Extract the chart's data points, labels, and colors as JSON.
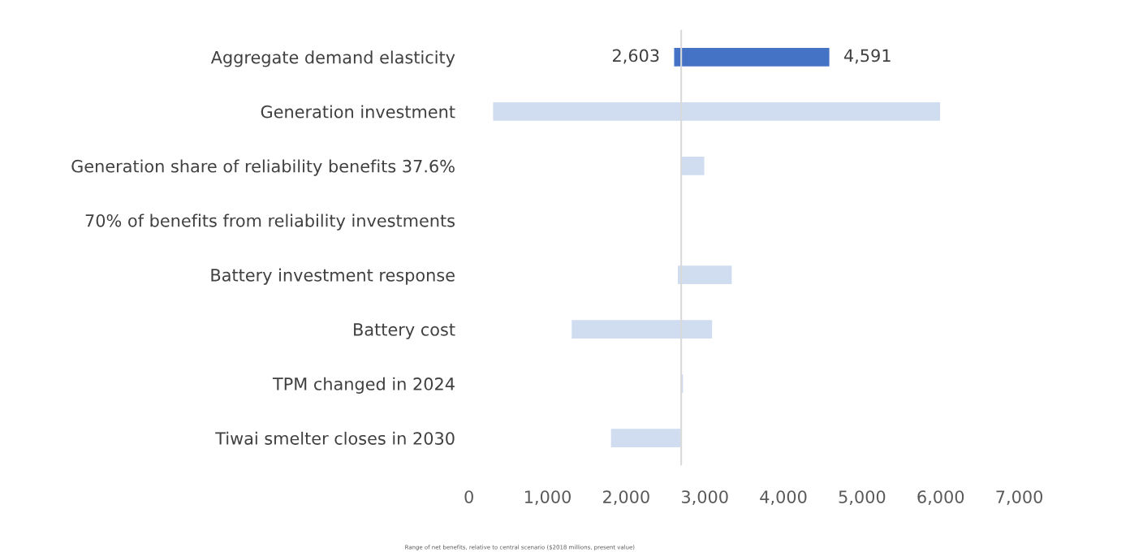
{
  "chart_data": {
    "type": "bar",
    "orientation": "horizontal",
    "categories": [
      "Aggregate demand elasticity",
      "Generation investment",
      "Generation share of reliability benefits 37.6%",
      "70% of benefits from reliability investments",
      "Battery investment response",
      "Battery cost",
      "TPM changed in 2024",
      "Tiwai smelter closes in 2030"
    ],
    "base": [
      2603,
      300,
      2700,
      null,
      2650,
      1300,
      2700,
      1800
    ],
    "values": [
      1988,
      5700,
      300,
      null,
      700,
      1800,
      30,
      900
    ],
    "colors": [
      "#4472c4",
      "#d0ddf0",
      "#d0ddf0",
      "#d0ddf0",
      "#d0ddf0",
      "#d0ddf0",
      "#d0ddf0",
      "#d0ddf0"
    ],
    "xlim": [
      0,
      7000
    ],
    "xticks": [
      {
        "value": 0,
        "label": "0"
      },
      {
        "value": 1000,
        "label": "1,000"
      },
      {
        "value": 2000,
        "label": "2,000"
      },
      {
        "value": 3000,
        "label": "3,000"
      },
      {
        "value": 4000,
        "label": "4,000"
      },
      {
        "value": 5000,
        "label": "5,000"
      },
      {
        "value": 6000,
        "label": "6,000"
      },
      {
        "value": 7000,
        "label": "7,000"
      }
    ],
    "ref_lines": [
      {
        "axis": "x",
        "value": 2700,
        "color": "#d9d9d9"
      }
    ],
    "annotations": [
      {
        "text": "2,603",
        "x": 2603,
        "y": "Aggregate demand elasticity"
      },
      {
        "text": "4,591",
        "x": 4591,
        "y": "Aggregate demand elasticity"
      },
      "Range of net benefits, relative to central scenario ($2018 millions, present value)"
    ],
    "grid": false,
    "legend": false
  }
}
